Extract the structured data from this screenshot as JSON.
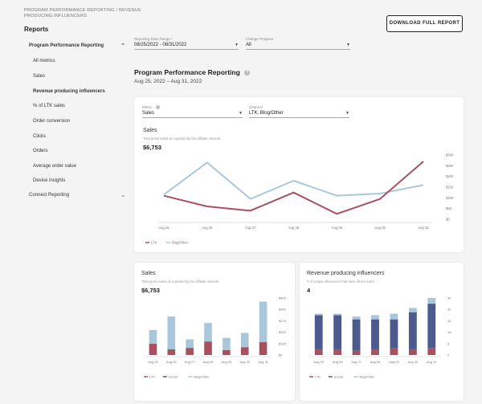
{
  "breadcrumb": "PROGRAM PERFORMANCE REPORTING / REVENUE PRODUCING INFLUENCERS",
  "sidebar": {
    "title": "Reports",
    "items": [
      {
        "label": "Program Performance Reporting",
        "kind": "section",
        "expanded": true
      },
      {
        "label": "All metrics",
        "kind": "sub"
      },
      {
        "label": "Sales",
        "kind": "sub"
      },
      {
        "label": "Revenue producing influencers",
        "kind": "sub",
        "active": true
      },
      {
        "label": "% of LTK sales",
        "kind": "sub"
      },
      {
        "label": "Order conversion",
        "kind": "sub"
      },
      {
        "label": "Clicks",
        "kind": "sub"
      },
      {
        "label": "Orders",
        "kind": "sub"
      },
      {
        "label": "Average order value",
        "kind": "sub"
      },
      {
        "label": "Device insights",
        "kind": "sub"
      },
      {
        "label": "Connect Reporting",
        "kind": "section",
        "expanded": false
      }
    ]
  },
  "header": {
    "download_label": "DOWNLOAD FULL REPORT",
    "date_range_label": "Reporting Date Range *",
    "date_range_value": "08/25/2022 - 08/31/2022",
    "program_label": "Change Program",
    "program_value": "All"
  },
  "page": {
    "title": "Program Performance Reporting",
    "date_range": "Aug 25, 2022 – Aug 31, 2022"
  },
  "main_card": {
    "metric_label": "Metric",
    "metric_value": "Sales",
    "channel_label": "Channel",
    "channel_value": "LTK, Blog/Other",
    "title": "Sales",
    "subtitle": "Total gross sales as reported by the affiliate network.",
    "total": "$6,753"
  },
  "sales_card": {
    "title": "Sales",
    "subtitle": "Total gross sales as reported by the affiliate network.",
    "total": "$6,753"
  },
  "influencers_card": {
    "title": "Revenue producing influencers",
    "subtitle": "# of unique influencers that have driven sales",
    "total": "4"
  },
  "colors": {
    "ltk": "#a9505f",
    "blog": "#a8c7db",
    "social": "#4c5a8e"
  },
  "chart_data": [
    {
      "type": "line",
      "title": "Sales",
      "x": [
        "Aug 25",
        "Aug 26",
        "Aug 27",
        "Aug 28",
        "Aug 29",
        "Aug 30",
        "Aug 31"
      ],
      "ylim": [
        0,
        300
      ],
      "y_ticks": [
        "$0",
        "$50",
        "$100",
        "$150",
        "$200",
        "$250",
        "$300"
      ],
      "series": [
        {
          "name": "LTK",
          "values": [
            110,
            60,
            40,
            125,
            25,
            95,
            270
          ],
          "color": "#a9505f"
        },
        {
          "name": "Blog/Other",
          "values": [
            115,
            265,
            95,
            180,
            110,
            120,
            160
          ],
          "color": "#a8c7db"
        }
      ],
      "legend": "bottom-left",
      "grid": false
    },
    {
      "type": "bar",
      "title": "Sales",
      "stacked": true,
      "x": [
        "Aug 25",
        "Aug 26",
        "Aug 27",
        "Aug 28",
        "Aug 29",
        "Aug 30",
        "Aug 31"
      ],
      "ylim": [
        0,
        400
      ],
      "y_ticks": [
        "$0",
        "$100",
        "$200",
        "$275",
        "$300",
        "$400"
      ],
      "series": [
        {
          "name": "LTK",
          "values": [
            80,
            40,
            50,
            95,
            35,
            55,
            90
          ],
          "color": "#a9505f"
        },
        {
          "name": "Social",
          "values": [
            0,
            0,
            0,
            0,
            0,
            0,
            0
          ],
          "color": "#4c5a8e"
        },
        {
          "name": "Blog/Other",
          "values": [
            95,
            230,
            60,
            130,
            85,
            100,
            285
          ],
          "color": "#a8c7db"
        }
      ],
      "legend": "bottom-left"
    },
    {
      "type": "bar",
      "title": "Revenue producing influencers",
      "stacked": true,
      "x": [
        "Aug 25",
        "Aug 26",
        "Aug 27",
        "Aug 28",
        "Aug 29",
        "Aug 30",
        "Aug 31"
      ],
      "ylim": [
        0,
        40
      ],
      "y_ticks": [
        "0",
        "8",
        "16",
        "24",
        "32",
        "40"
      ],
      "series": [
        {
          "name": "LTK",
          "values": [
            4,
            4,
            3,
            4,
            5,
            4,
            5
          ],
          "color": "#a9505f"
        },
        {
          "name": "Social",
          "values": [
            24,
            24,
            22,
            21,
            20,
            26,
            31
          ],
          "color": "#4c5a8e"
        },
        {
          "name": "Blog/Other",
          "values": [
            1,
            1,
            2,
            3,
            4,
            3,
            4
          ],
          "color": "#a8c7db"
        }
      ],
      "legend": "bottom-left"
    }
  ]
}
